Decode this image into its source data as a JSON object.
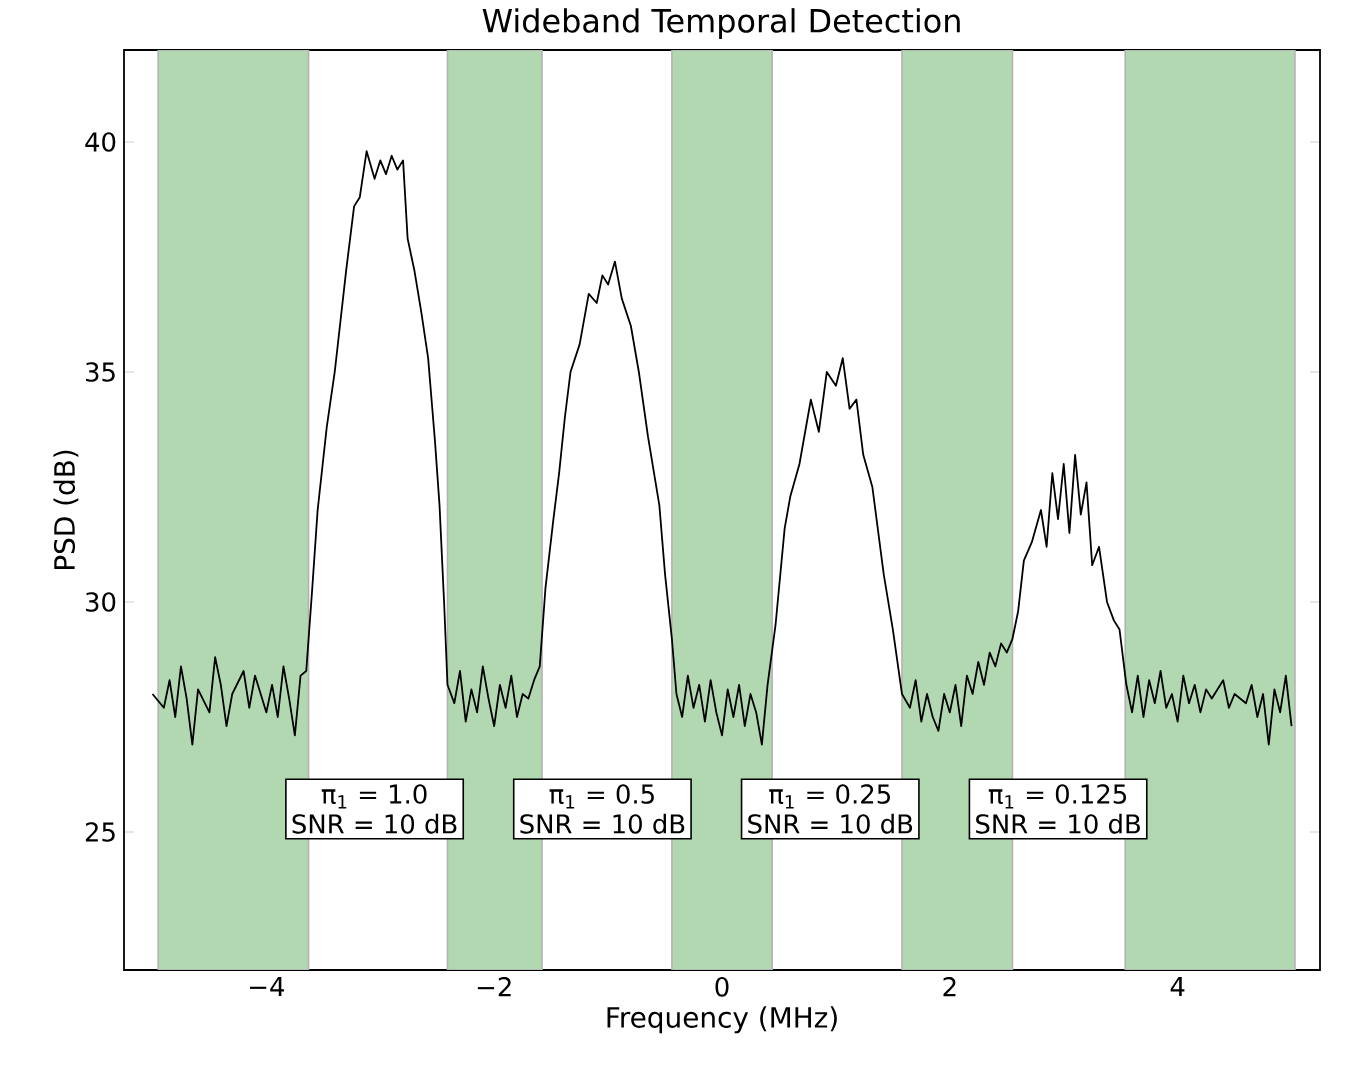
{
  "chart_data": {
    "type": "line",
    "title": "Wideband Temporal Detection",
    "xlabel": "Frequency (MHz)",
    "ylabel": "PSD (dB)",
    "xlim": [
      -5.25,
      5.25
    ],
    "ylim": [
      22,
      42
    ],
    "xticks": [
      {
        "value": -4,
        "label": "−4"
      },
      {
        "value": -2,
        "label": "−2"
      },
      0,
      2,
      4
    ],
    "yticks": [
      25,
      30,
      35,
      40
    ],
    "color": "#000000",
    "x": [
      -5.0,
      -4.9,
      -4.85,
      -4.8,
      -4.75,
      -4.7,
      -4.65,
      -4.6,
      -4.5,
      -4.45,
      -4.4,
      -4.35,
      -4.3,
      -4.2,
      -4.15,
      -4.1,
      -4.0,
      -3.95,
      -3.9,
      -3.85,
      -3.8,
      -3.75,
      -3.7,
      -3.65,
      -3.6,
      -3.55,
      -3.47,
      -3.4,
      -3.35,
      -3.3,
      -3.23,
      -3.18,
      -3.12,
      -3.05,
      -3.0,
      -2.95,
      -2.9,
      -2.85,
      -2.8,
      -2.76,
      -2.7,
      -2.64,
      -2.58,
      -2.52,
      -2.48,
      -2.44,
      -2.41,
      -2.35,
      -2.3,
      -2.25,
      -2.2,
      -2.15,
      -2.1,
      -2.05,
      -2.0,
      -1.95,
      -1.9,
      -1.85,
      -1.8,
      -1.75,
      -1.7,
      -1.65,
      -1.6,
      -1.55,
      -1.48,
      -1.43,
      -1.38,
      -1.33,
      -1.25,
      -1.17,
      -1.1,
      -1.05,
      -1.0,
      -0.94,
      -0.88,
      -0.8,
      -0.73,
      -0.65,
      -0.55,
      -0.5,
      -0.44,
      -0.4,
      -0.35,
      -0.3,
      -0.25,
      -0.2,
      -0.15,
      -0.1,
      -0.05,
      0.0,
      0.05,
      0.1,
      0.15,
      0.2,
      0.25,
      0.3,
      0.35,
      0.4,
      0.47,
      0.55,
      0.6,
      0.68,
      0.78,
      0.85,
      0.92,
      1.0,
      1.06,
      1.12,
      1.18,
      1.24,
      1.32,
      1.42,
      1.5,
      1.58,
      1.65,
      1.7,
      1.75,
      1.8,
      1.85,
      1.9,
      1.95,
      2.0,
      2.05,
      2.1,
      2.15,
      2.2,
      2.25,
      2.3,
      2.35,
      2.4,
      2.45,
      2.5,
      2.55,
      2.6,
      2.65,
      2.72,
      2.8,
      2.85,
      2.9,
      2.95,
      3.0,
      3.05,
      3.1,
      3.15,
      3.2,
      3.25,
      3.31,
      3.38,
      3.44,
      3.49,
      3.55,
      3.6,
      3.65,
      3.7,
      3.75,
      3.8,
      3.85,
      3.9,
      3.95,
      4.0,
      4.05,
      4.1,
      4.15,
      4.2,
      4.25,
      4.3,
      4.4,
      4.45,
      4.5,
      4.6,
      4.65,
      4.7,
      4.75,
      4.8,
      4.85,
      4.9,
      4.95,
      5.0
    ],
    "values": [
      28.0,
      27.7,
      28.3,
      27.5,
      28.6,
      27.9,
      26.9,
      28.1,
      27.6,
      28.8,
      28.2,
      27.3,
      28.0,
      28.5,
      27.7,
      28.4,
      27.6,
      28.2,
      27.5,
      28.6,
      27.9,
      27.1,
      28.4,
      28.5,
      30.2,
      32.0,
      33.8,
      35.0,
      36.1,
      37.2,
      38.6,
      38.8,
      39.8,
      39.2,
      39.6,
      39.3,
      39.7,
      39.4,
      39.6,
      37.9,
      37.2,
      36.3,
      35.3,
      33.5,
      32.1,
      30.0,
      28.2,
      27.8,
      28.5,
      27.4,
      28.1,
      27.6,
      28.6,
      27.9,
      27.3,
      28.2,
      27.7,
      28.4,
      27.5,
      28.0,
      27.9,
      28.3,
      28.6,
      30.3,
      31.8,
      32.8,
      34.0,
      35.0,
      35.6,
      36.7,
      36.5,
      37.1,
      36.9,
      37.4,
      36.6,
      36.0,
      35.0,
      33.6,
      32.1,
      30.6,
      29.2,
      28.0,
      27.5,
      28.4,
      27.7,
      28.2,
      27.4,
      28.3,
      27.6,
      27.1,
      28.1,
      27.5,
      28.2,
      27.3,
      28.0,
      27.6,
      26.9,
      28.2,
      29.5,
      31.6,
      32.3,
      33.0,
      34.4,
      33.7,
      35.0,
      34.7,
      35.3,
      34.2,
      34.4,
      33.2,
      32.5,
      30.6,
      29.4,
      28.0,
      27.7,
      28.3,
      27.4,
      28.0,
      27.5,
      27.2,
      28.0,
      27.6,
      28.2,
      27.3,
      28.4,
      28.0,
      28.7,
      28.2,
      28.9,
      28.6,
      29.1,
      28.9,
      29.2,
      29.8,
      30.9,
      31.3,
      32.0,
      31.2,
      32.8,
      31.8,
      33.0,
      31.5,
      33.2,
      31.9,
      32.6,
      30.8,
      31.2,
      30.0,
      29.6,
      29.4,
      28.2,
      27.6,
      28.4,
      27.5,
      28.3,
      27.8,
      28.5,
      27.7,
      28.0,
      27.4,
      28.4,
      27.8,
      28.2,
      27.6,
      28.1,
      27.9,
      28.3,
      27.7,
      28.0,
      27.8,
      28.2,
      27.5,
      28.0,
      26.9,
      28.1,
      27.6,
      28.4,
      27.3
    ],
    "bands": [
      {
        "axis": "x",
        "from": -4.95,
        "to": -3.63,
        "color": "#b2d8b2"
      },
      {
        "axis": "x",
        "from": -2.41,
        "to": -1.58,
        "color": "#b2d8b2"
      },
      {
        "axis": "x",
        "from": -0.44,
        "to": 0.44,
        "color": "#b2d8b2"
      },
      {
        "axis": "x",
        "from": 1.58,
        "to": 2.55,
        "color": "#b2d8b2"
      },
      {
        "axis": "x",
        "from": 3.54,
        "to": 5.03,
        "color": "#b2d8b2"
      }
    ],
    "annotations": [
      "π$_{1}$ = 1.0",
      "SNR = 10 dB",
      "π$_{1}$ = 0.5",
      "SNR = 10 dB",
      "π$_{1}$ = 0.25",
      "SNR = 10 dB",
      "π$_{1}$ = 0.125",
      "SNR = 10 dB"
    ]
  }
}
